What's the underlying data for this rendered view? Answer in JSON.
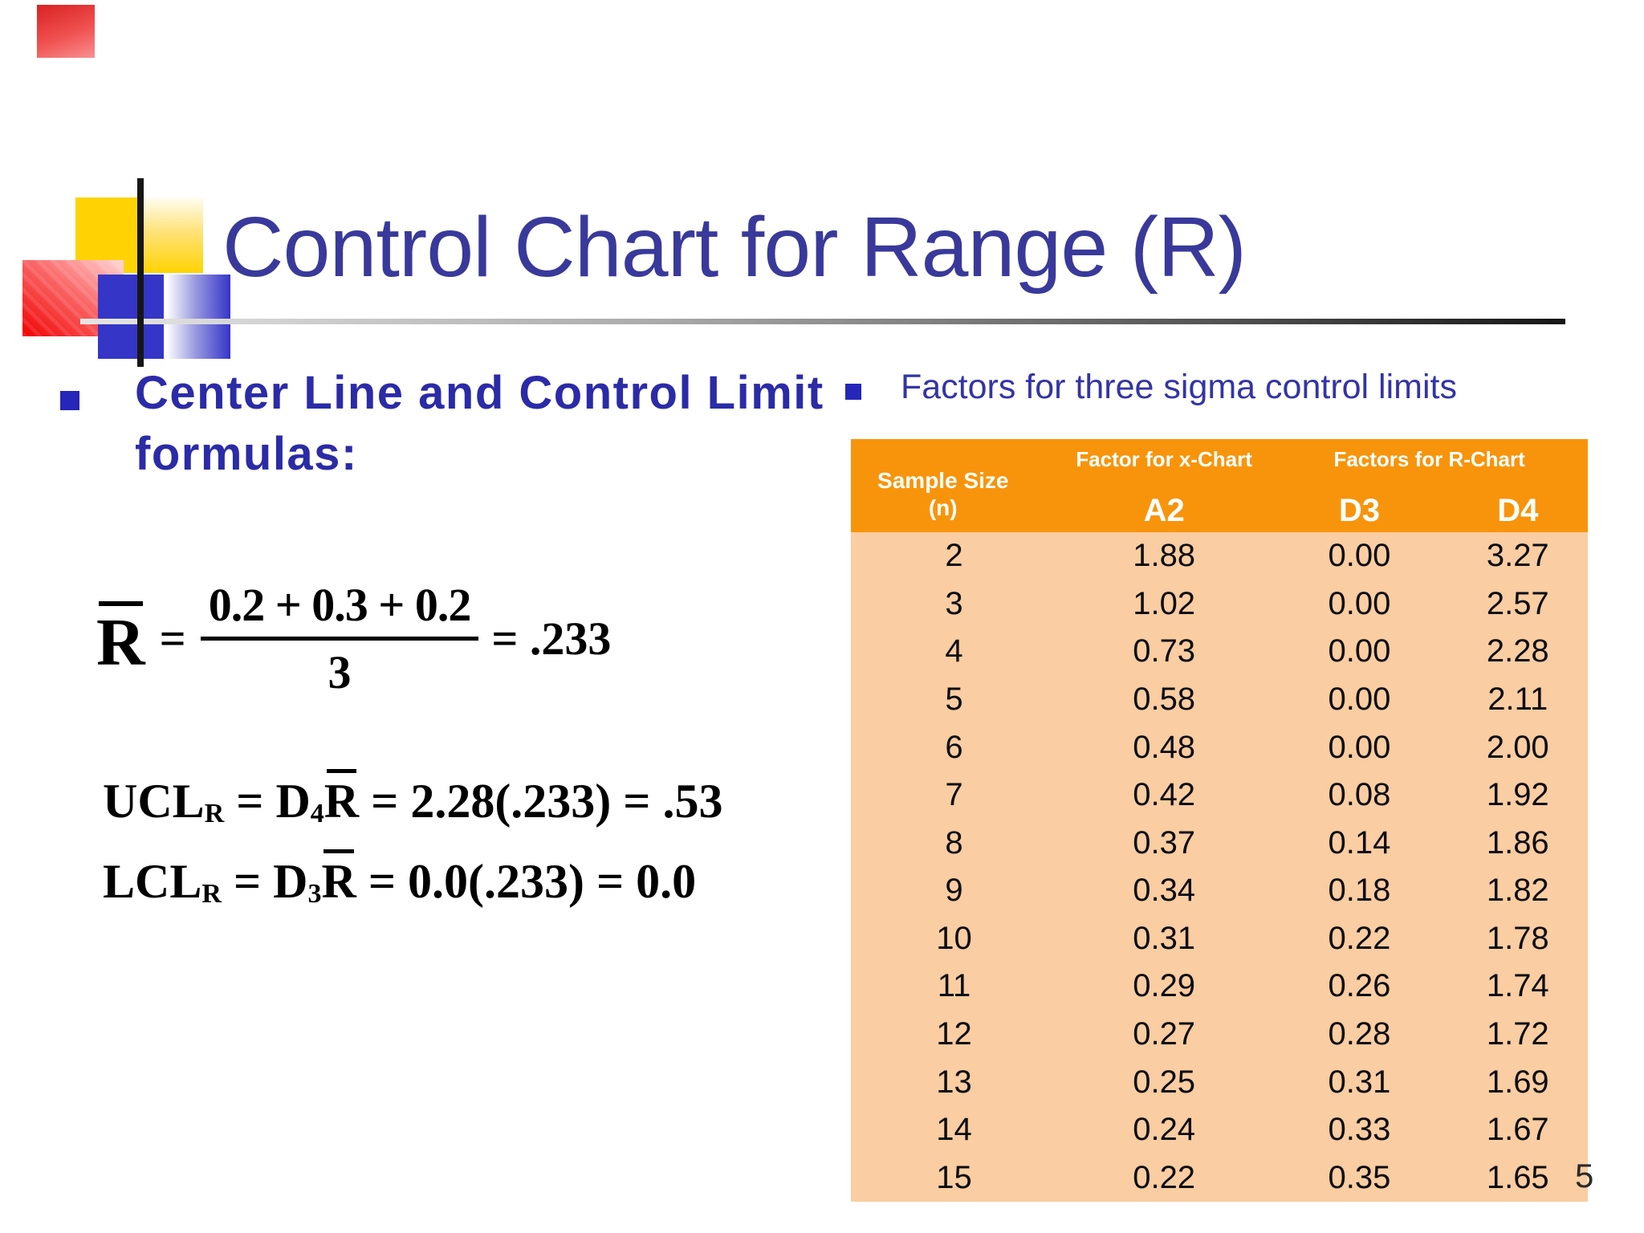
{
  "slide": {
    "title": "Control Chart for Range (R)",
    "page_number": "5"
  },
  "left": {
    "heading_line1": "Center Line and Control Limit",
    "heading_line2": "formulas:",
    "formulas": {
      "rbar": {
        "symbol": "R",
        "eq": "=",
        "numerator": "0.2 + 0.3 + 0.2",
        "denominator": "3",
        "result": "=  .233"
      },
      "ucl": {
        "lhs": "UCL",
        "lhs_sub": "R",
        "mid": " = D",
        "coef_sub": "4",
        "rbar": "R",
        "rhs": " = 2.28(.233) = .53"
      },
      "lcl": {
        "lhs": "LCL",
        "lhs_sub": "R",
        "mid": " = D",
        "coef_sub": "3",
        "rbar": "R",
        "rhs": " = 0.0(.233) = 0.0"
      }
    }
  },
  "right": {
    "heading": "Factors for three sigma control limits",
    "table": {
      "header": {
        "col1_line1": "Sample Size",
        "col1_line2": "(n)",
        "group_x": "Factor for x-Chart",
        "group_r": "Factors for R-Chart",
        "a2": "A2",
        "d3": "D3",
        "d4": "D4"
      },
      "rows": [
        [
          "2",
          "1.88",
          "0.00",
          "3.27"
        ],
        [
          "3",
          "1.02",
          "0.00",
          "2.57"
        ],
        [
          "4",
          "0.73",
          "0.00",
          "2.28"
        ],
        [
          "5",
          "0.58",
          "0.00",
          "2.11"
        ],
        [
          "6",
          "0.48",
          "0.00",
          "2.00"
        ],
        [
          "7",
          "0.42",
          "0.08",
          "1.92"
        ],
        [
          "8",
          "0.37",
          "0.14",
          "1.86"
        ],
        [
          "9",
          "0.34",
          "0.18",
          "1.82"
        ],
        [
          "10",
          "0.31",
          "0.22",
          "1.78"
        ],
        [
          "11",
          "0.29",
          "0.26",
          "1.74"
        ],
        [
          "12",
          "0.27",
          "0.28",
          "1.72"
        ],
        [
          "13",
          "0.25",
          "0.31",
          "1.69"
        ],
        [
          "14",
          "0.24",
          "0.33",
          "1.67"
        ],
        [
          "15",
          "0.22",
          "0.35",
          "1.65"
        ]
      ]
    }
  },
  "colors": {
    "title_blue": "#39399b",
    "text_blue": "#2b2ba8",
    "table_header_orange": "#f8940b",
    "table_body_peach": "#facda2",
    "logo_yellow": "#ffd303",
    "logo_blue": "#3535c8",
    "logo_red": "#f10000"
  }
}
